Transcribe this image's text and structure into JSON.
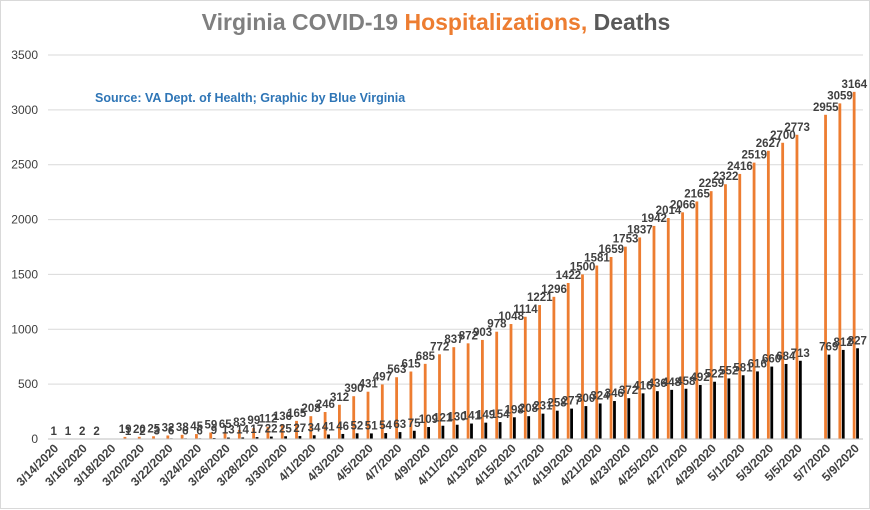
{
  "title": {
    "part1": "Virginia COVID-19 ",
    "part2": "Hospitalizations,",
    "part3": " Deaths"
  },
  "subtitle": "Source: VA Dept. of Health; Graphic by Blue Virginia",
  "colors": {
    "hospitalizations": "#ed7d31",
    "deaths": "#000000",
    "grid": "#d9d9d9",
    "title_gray": "#7f7f7f",
    "title_orange": "#ed7d31",
    "title_dark": "#595959",
    "subtitle": "#2e75b6"
  },
  "chart_data": {
    "type": "bar",
    "ylim": [
      0,
      3500
    ],
    "yticks": [
      0,
      500,
      1000,
      1500,
      2000,
      2500,
      3000,
      3500
    ],
    "grid": true,
    "legend": "none",
    "x_tick_labels": [
      "3/14/2020",
      "3/16/2020",
      "3/18/2020",
      "3/20/2020",
      "3/22/2020",
      "3/24/2020",
      "3/26/2020",
      "3/28/2020",
      "3/30/2020",
      "4/1/2020",
      "4/3/2020",
      "4/5/2020",
      "4/7/2020",
      "4/9/2020",
      "4/11/2020",
      "4/13/2020",
      "4/15/2020",
      "4/17/2020",
      "4/19/2020",
      "4/21/2020",
      "4/23/2020",
      "4/25/2020",
      "4/27/2020",
      "4/29/2020",
      "5/1/2020",
      "5/3/2020",
      "5/5/2020",
      "5/7/2020",
      "5/9/2020"
    ],
    "categories": [
      "3/14/2020",
      "3/15/2020",
      "3/16/2020",
      "3/17/2020",
      "3/18/2020",
      "3/19/2020",
      "3/20/2020",
      "3/21/2020",
      "3/22/2020",
      "3/23/2020",
      "3/24/2020",
      "3/25/2020",
      "3/26/2020",
      "3/27/2020",
      "3/28/2020",
      "3/29/2020",
      "3/30/2020",
      "3/31/2020",
      "4/1/2020",
      "4/2/2020",
      "4/3/2020",
      "4/4/2020",
      "4/5/2020",
      "4/6/2020",
      "4/7/2020",
      "4/8/2020",
      "4/9/2020",
      "4/10/2020",
      "4/11/2020",
      "4/12/2020",
      "4/13/2020",
      "4/14/2020",
      "4/15/2020",
      "4/16/2020",
      "4/17/2020",
      "4/18/2020",
      "4/19/2020",
      "4/20/2020",
      "4/21/2020",
      "4/22/2020",
      "4/23/2020",
      "4/24/2020",
      "4/25/2020",
      "4/26/2020",
      "4/27/2020",
      "4/28/2020",
      "4/29/2020",
      "4/30/2020",
      "5/1/2020",
      "5/2/2020",
      "5/3/2020",
      "5/4/2020",
      "5/5/2020",
      "5/6/2020",
      "5/7/2020",
      "5/8/2020",
      "5/9/2020"
    ],
    "series": [
      {
        "name": "Hospitalizations",
        "values": [
          1,
          1,
          2,
          2,
          null,
          19,
          20,
          25,
          32,
          38,
          45,
          59,
          65,
          83,
          99,
          112,
          136,
          165,
          208,
          246,
          312,
          390,
          431,
          497,
          563,
          615,
          685,
          772,
          837,
          872,
          903,
          978,
          1048,
          1114,
          1221,
          1296,
          1422,
          1500,
          1581,
          1659,
          1753,
          1837,
          1942,
          2014,
          2066,
          2165,
          2259,
          2322,
          2416,
          2519,
          2627,
          2700,
          2773,
          null,
          2955,
          3059,
          3164
        ]
      },
      {
        "name": "Deaths",
        "values": [
          null,
          null,
          null,
          null,
          null,
          1,
          2,
          3,
          6,
          6,
          6,
          9,
          13,
          14,
          17,
          22,
          25,
          27,
          34,
          41,
          46,
          52,
          51,
          54,
          63,
          75,
          109,
          121,
          130,
          141,
          149,
          154,
          198,
          208,
          231,
          258,
          277,
          300,
          324,
          346,
          372,
          416,
          436,
          448,
          458,
          492,
          522,
          552,
          581,
          616,
          660,
          684,
          713,
          null,
          769,
          812,
          827
        ]
      }
    ],
    "data_labels": [
      {
        "h": "1",
        "d": ""
      },
      {
        "h": "1",
        "d": ""
      },
      {
        "h": "2",
        "d": ""
      },
      {
        "h": "2",
        "d": ""
      },
      {
        "h": "",
        "d": ""
      },
      {
        "h": "19",
        "d": "1"
      },
      {
        "h": "20",
        "d": "2"
      },
      {
        "h": "25",
        "d": "3"
      },
      {
        "h": "32",
        "d": "6"
      },
      {
        "h": "38",
        "d": "6"
      },
      {
        "h": "45",
        "d": "6"
      },
      {
        "h": "59",
        "d": "9"
      },
      {
        "h": "65",
        "d": "13"
      },
      {
        "h": "83",
        "d": "14"
      },
      {
        "h": "99",
        "d": "17"
      },
      {
        "h": "112",
        "d": "22"
      },
      {
        "h": "136",
        "d": "25"
      },
      {
        "h": "165",
        "d": "27"
      },
      {
        "h": "208",
        "d": "34"
      },
      {
        "h": "246",
        "d": "41"
      },
      {
        "h": "312",
        "d": "46"
      },
      {
        "h": "390",
        "d": "52"
      },
      {
        "h": "431",
        "d": "51"
      },
      {
        "h": "497",
        "d": "54"
      },
      {
        "h": "563",
        "d": "63"
      },
      {
        "h": "615",
        "d": "75"
      },
      {
        "h": "685",
        "d": "109"
      },
      {
        "h": "772",
        "d": "121"
      },
      {
        "h": "837",
        "d": "130"
      },
      {
        "h": "872",
        "d": "141"
      },
      {
        "h": "903",
        "d": "149"
      },
      {
        "h": "978",
        "d": "154"
      },
      {
        "h": "1048",
        "d": "198"
      },
      {
        "h": "1114",
        "d": "208"
      },
      {
        "h": "1221",
        "d": "231"
      },
      {
        "h": "1296",
        "d": "258"
      },
      {
        "h": "1422",
        "d": "277"
      },
      {
        "h": "1500",
        "d": "300"
      },
      {
        "h": "1581",
        "d": "324"
      },
      {
        "h": "1659",
        "d": "346"
      },
      {
        "h": "1753",
        "d": "372"
      },
      {
        "h": "1837",
        "d": "416"
      },
      {
        "h": "1942",
        "d": "436"
      },
      {
        "h": "2014",
        "d": "448"
      },
      {
        "h": "2066",
        "d": "458"
      },
      {
        "h": "2165",
        "d": "492"
      },
      {
        "h": "2259",
        "d": "522"
      },
      {
        "h": "2322",
        "d": "552"
      },
      {
        "h": "2416",
        "d": "581"
      },
      {
        "h": "2519",
        "d": "616"
      },
      {
        "h": "2627",
        "d": "660"
      },
      {
        "h": "2700",
        "d": "684"
      },
      {
        "h": "2773",
        "d": "713"
      },
      {
        "h": "",
        "d": ""
      },
      {
        "h": "2955",
        "d": "769"
      },
      {
        "h": "3059",
        "d": "812"
      },
      {
        "h": "3164",
        "d": "827"
      }
    ]
  }
}
